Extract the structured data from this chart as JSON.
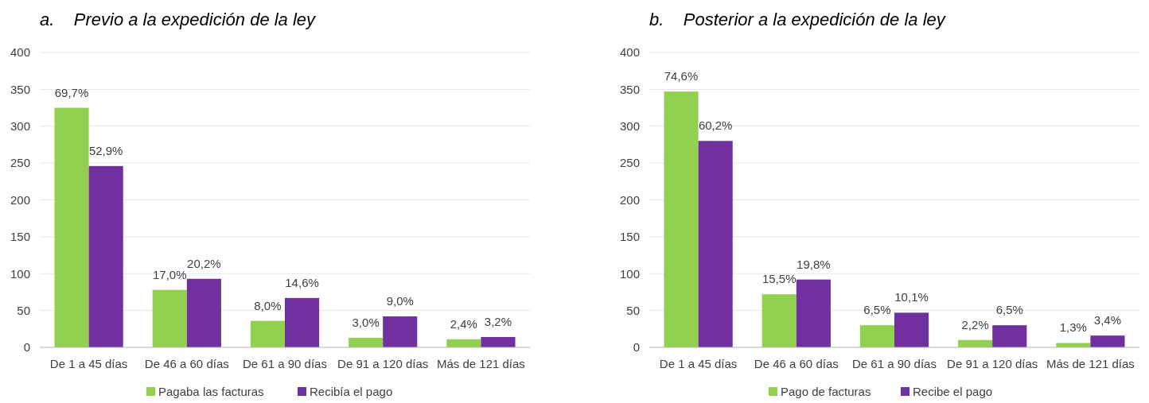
{
  "chart_data": [
    {
      "type": "bar",
      "title": "a.    Previo a la expedición de la ley",
      "categories": [
        "De 1 a 45 días",
        "De 46 a 60 días",
        "De 61 a 90 días",
        "De 91 a 120 días",
        "Más de 121 días"
      ],
      "series": [
        {
          "name": "Pagaba las facturas",
          "color": "#92d050",
          "values": [
            325,
            78,
            36,
            13,
            11
          ]
        },
        {
          "name": "Recibía el pago",
          "color": "#7030a0",
          "values": [
            246,
            93,
            67,
            42,
            14
          ]
        }
      ],
      "annotations": [
        {
          "text": "69,7%",
          "x": "De 1 a 45 días",
          "y": 325
        },
        {
          "text": "17,0%",
          "x": "De 46 a 60 días",
          "y": 78
        },
        {
          "text": "8,0%",
          "x": "De 61 a 90 días",
          "y": 36
        },
        {
          "text": "3,0%",
          "x": "De 91 a 120 días",
          "y": 13
        },
        {
          "text": "2,4%",
          "x": "Más de 121 días",
          "y": 11
        },
        {
          "text": "52,9%",
          "x": "De 1 a 45 días",
          "y": 246
        },
        {
          "text": "20,2%",
          "x": "De 46 a 60 días",
          "y": 93
        },
        {
          "text": "14,6%",
          "x": "De 61 a 90 días",
          "y": 67
        },
        {
          "text": "9,0%",
          "x": "De 91 a 120 días",
          "y": 42
        },
        {
          "text": "3,2%",
          "x": "Más de 121 días",
          "y": 14
        }
      ],
      "ylim": [
        0,
        400
      ],
      "yticks": [
        0,
        50,
        100,
        150,
        200,
        250,
        300,
        350,
        400
      ],
      "grid": "y",
      "legend": "bottom"
    },
    {
      "type": "bar",
      "title": "b.    Posterior a la expedición de la ley",
      "categories": [
        "De 1 a 45 días",
        "De 46 a 60 días",
        "De 61 a 90 días",
        "De 91 a 120 días",
        "Más de 121 días"
      ],
      "series": [
        {
          "name": "Pago de facturas",
          "color": "#92d050",
          "values": [
            347,
            72,
            30,
            10,
            6
          ]
        },
        {
          "name": "Recibe el pago",
          "color": "#7030a0",
          "values": [
            280,
            92,
            47,
            30,
            16
          ]
        }
      ],
      "annotations": [
        {
          "text": "74,6%",
          "x": "De 1 a 45 días",
          "y": 347
        },
        {
          "text": "15,5%",
          "x": "De 46 a 60 días",
          "y": 72
        },
        {
          "text": "6,5%",
          "x": "De 61 a 90 días",
          "y": 30
        },
        {
          "text": "2,2%",
          "x": "De 91 a 120 días",
          "y": 10
        },
        {
          "text": "1,3%",
          "x": "Más de 121 días",
          "y": 6
        },
        {
          "text": "60,2%",
          "x": "De 1 a 45 días",
          "y": 280
        },
        {
          "text": "19,8%",
          "x": "De 46 a 60 días",
          "y": 92
        },
        {
          "text": "10,1%",
          "x": "De 61 a 90 días",
          "y": 47
        },
        {
          "text": "6,5%",
          "x": "De 91 a 120 días",
          "y": 30
        },
        {
          "text": "3,4%",
          "x": "Más de 121 días",
          "y": 16
        }
      ],
      "ylim": [
        0,
        400
      ],
      "yticks": [
        0,
        50,
        100,
        150,
        200,
        250,
        300,
        350,
        400
      ],
      "grid": "y",
      "legend": "bottom"
    }
  ]
}
